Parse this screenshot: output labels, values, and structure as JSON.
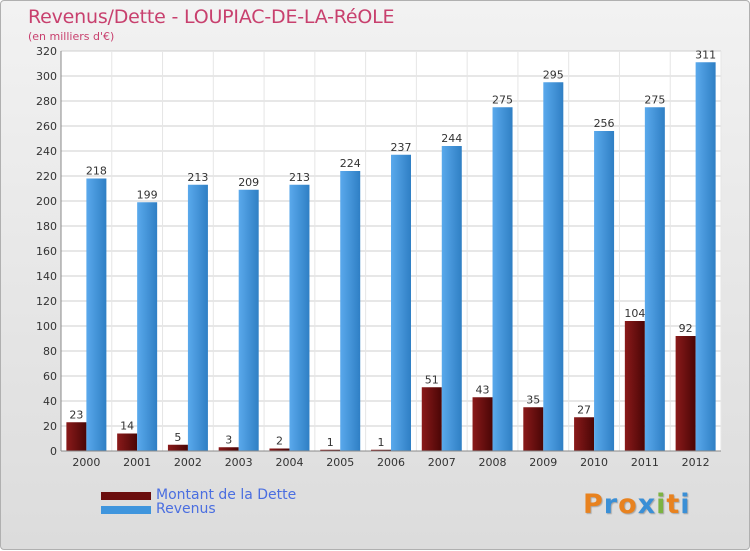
{
  "header": {
    "title": "Revenus/Dette - LOUPIAC-DE-LA-RéOLE",
    "subtitle": "(en milliers d'€)"
  },
  "legend": {
    "items": [
      {
        "label": "Montant de la Dette",
        "color": "#6b0e0e"
      },
      {
        "label": "Revenus",
        "color": "#3f95dd"
      }
    ]
  },
  "logo": {
    "letters": [
      "P",
      "r",
      "o",
      "x",
      "i",
      "t",
      "i"
    ],
    "colors": [
      "#e8821f",
      "#3a8fd6",
      "#e8821f",
      "#3a8fd6",
      "#7cb342",
      "#e8821f",
      "#3a8fd6"
    ]
  },
  "chart_data": {
    "type": "bar",
    "categories": [
      "2000",
      "2001",
      "2002",
      "2003",
      "2004",
      "2005",
      "2006",
      "2007",
      "2008",
      "2009",
      "2010",
      "2011",
      "2012"
    ],
    "series": [
      {
        "name": "Montant de la Dette",
        "color": "#6b0e0e",
        "values": [
          23,
          14,
          5,
          3,
          2,
          1,
          1,
          51,
          43,
          35,
          27,
          104,
          92
        ]
      },
      {
        "name": "Revenus",
        "color": "#3f95dd",
        "values": [
          218,
          199,
          213,
          209,
          213,
          224,
          237,
          244,
          275,
          295,
          256,
          275,
          311
        ]
      }
    ],
    "ylim": [
      0,
      320
    ],
    "yticks": [
      0,
      20,
      40,
      60,
      80,
      100,
      120,
      140,
      160,
      180,
      200,
      220,
      240,
      260,
      280,
      300,
      320
    ],
    "grid": true,
    "legend_position": "bottom-left"
  }
}
